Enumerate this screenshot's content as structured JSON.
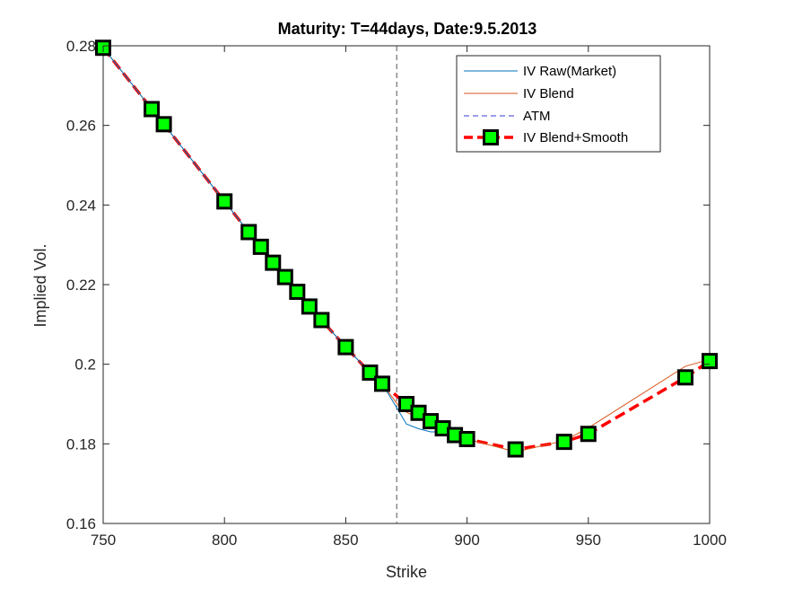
{
  "chart_data": {
    "type": "line",
    "title": "Maturity: T=44days, Date:9.5.2013",
    "xlabel": "Strike",
    "ylabel": "Implied Vol.",
    "xlim": [
      750,
      1000
    ],
    "ylim": [
      0.16,
      0.28
    ],
    "xticks": [
      750,
      800,
      850,
      900,
      950,
      1000
    ],
    "xtick_labels": [
      "750",
      "800",
      "850",
      "900",
      "950",
      "1000"
    ],
    "yticks": [
      0.16,
      0.18,
      0.2,
      0.22,
      0.24,
      0.26,
      0.28
    ],
    "ytick_labels": [
      "0.16",
      "0.18",
      "0.2",
      "0.22",
      "0.24",
      "0.26",
      "0.28"
    ],
    "grid": false,
    "legend_position": "top-right",
    "atm_strike": 871,
    "series": [
      {
        "name": "IV Raw(Market)",
        "color": "#0072bd",
        "style": "solid",
        "x": [
          750,
          770,
          775,
          800,
          810,
          815,
          820,
          825,
          830,
          835,
          840,
          850,
          860,
          865,
          871,
          875,
          880,
          885,
          890,
          895,
          900
        ],
        "y": [
          0.2795,
          0.2641,
          0.2603,
          0.2409,
          0.2332,
          0.2295,
          0.2255,
          0.2219,
          0.2182,
          0.2145,
          0.2111,
          0.2043,
          0.1979,
          0.1951,
          0.1891,
          0.185,
          0.1838,
          0.183,
          0.183,
          0.182,
          0.181
        ]
      },
      {
        "name": "IV Blend",
        "color": "#d95319",
        "style": "solid",
        "x": [
          750,
          770,
          775,
          800,
          810,
          815,
          820,
          825,
          830,
          835,
          840,
          850,
          860,
          865,
          871,
          875,
          880,
          885,
          890,
          895,
          900,
          920,
          940,
          950,
          990,
          1000
        ],
        "y": [
          0.2795,
          0.2641,
          0.2603,
          0.2409,
          0.2332,
          0.2295,
          0.2255,
          0.2219,
          0.2182,
          0.2145,
          0.2111,
          0.2043,
          0.1979,
          0.1951,
          0.1902,
          0.188,
          0.1865,
          0.185,
          0.1835,
          0.1822,
          0.1812,
          0.178,
          0.1808,
          0.184,
          0.1995,
          0.2012
        ]
      },
      {
        "name": "ATM",
        "color": "#3a3ad6",
        "style": "dashed"
      },
      {
        "name": "IV Blend+Smooth",
        "color": "#ff0000",
        "marker_color": "#00ff00",
        "style": "dashed-markers",
        "x": [
          750,
          770,
          775,
          800,
          810,
          815,
          820,
          825,
          830,
          835,
          840,
          850,
          860,
          865,
          875,
          880,
          885,
          890,
          895,
          900,
          920,
          940,
          950,
          990,
          1000
        ],
        "y": [
          0.2795,
          0.2641,
          0.2603,
          0.2409,
          0.2332,
          0.2295,
          0.2255,
          0.2219,
          0.2182,
          0.2145,
          0.2111,
          0.2043,
          0.1979,
          0.1951,
          0.19,
          0.1878,
          0.1857,
          0.1839,
          0.1822,
          0.1812,
          0.1786,
          0.1805,
          0.1825,
          0.1967,
          0.2008
        ]
      }
    ]
  }
}
